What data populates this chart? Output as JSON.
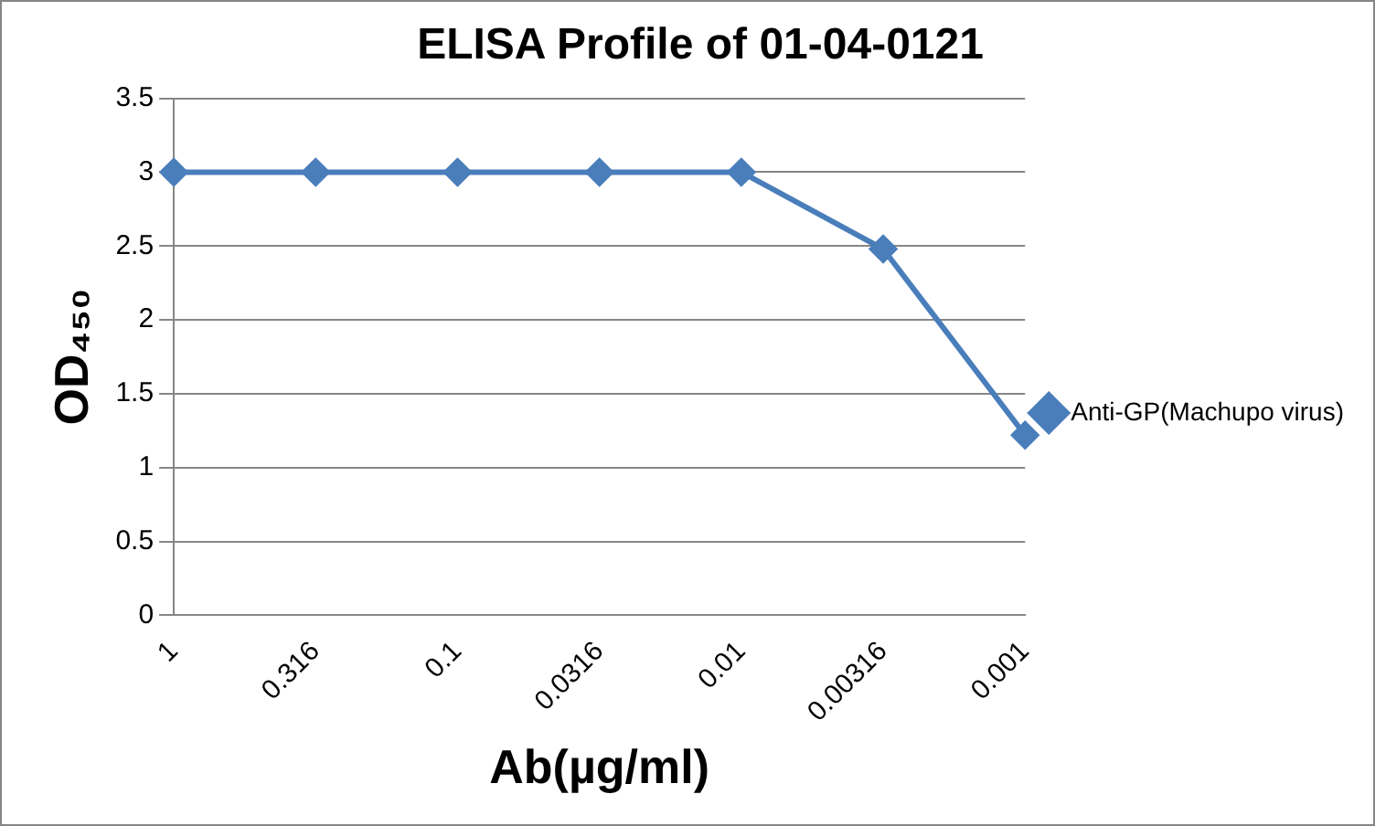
{
  "chart_data": {
    "type": "line",
    "title": "ELISA Profile of 01-04-0121",
    "xlabel": "Ab(µg/ml)",
    "ylabel": "OD₄₅₀",
    "categories": [
      "1",
      "0.316",
      "0.1",
      "0.0316",
      "0.01",
      "0.00316",
      "0.001"
    ],
    "series": [
      {
        "name": "Anti-GP(Machupo virus)",
        "color": "#4a7ebb",
        "values": [
          3,
          3,
          3,
          3,
          3,
          2.48,
          1.22
        ]
      }
    ],
    "ylim": [
      0,
      3.5
    ],
    "yticks": [
      0,
      0.5,
      1,
      1.5,
      2,
      2.5,
      3,
      3.5
    ],
    "grid": "y",
    "legend": "right",
    "marker": "diamond",
    "line_style": "solid"
  }
}
